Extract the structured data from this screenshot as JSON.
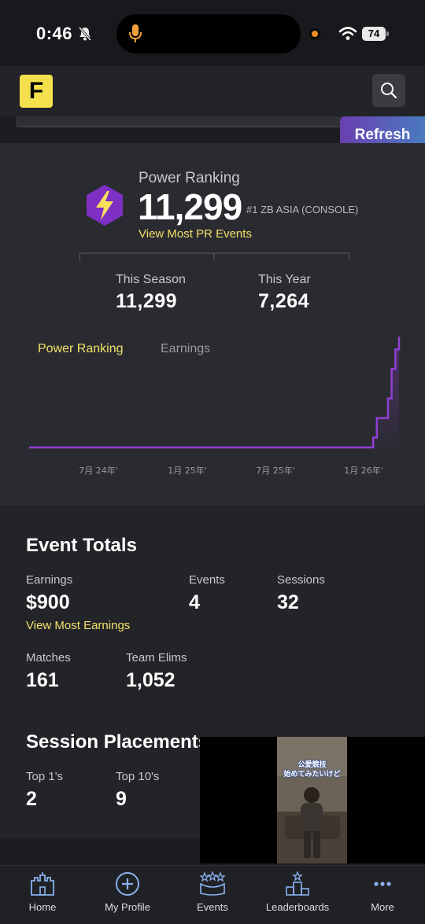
{
  "status_bar": {
    "time": "0:46",
    "battery": "74"
  },
  "header": {
    "logo_letter": "F",
    "refresh_label": "Refresh"
  },
  "power_ranking": {
    "label": "Power Ranking",
    "value": "11,299",
    "rank_text": "#1 ZB ASIA (CONSOLE)",
    "link": "View Most PR Events",
    "this_season_label": "This Season",
    "this_season_value": "11,299",
    "this_year_label": "This Year",
    "this_year_value": "7,264",
    "tabs": [
      "Power Ranking",
      "Earnings"
    ]
  },
  "chart_data": {
    "type": "line",
    "x_ticks": [
      "7月 24年'",
      "1月 25年'",
      "7月 25年'",
      "1月 26年'"
    ],
    "series": [
      {
        "values_shape": "flat near zero then stepping up sharply at the end",
        "x": [
          0,
          0.92,
          0.93,
          0.94,
          0.96,
          0.97,
          0.98,
          0.99,
          1.0
        ],
        "y": [
          0,
          0,
          1,
          3,
          3,
          5,
          8,
          10,
          11.3
        ]
      }
    ],
    "accent": "#8f3fd6"
  },
  "event_totals": {
    "title": "Event Totals",
    "earnings_label": "Earnings",
    "earnings_value": "$900",
    "earnings_link": "View Most Earnings",
    "events_label": "Events",
    "events_value": "4",
    "sessions_label": "Sessions",
    "sessions_value": "32",
    "matches_label": "Matches",
    "matches_value": "161",
    "elims_label": "Team Elims",
    "elims_value": "1,052"
  },
  "session_placements": {
    "title": "Session Placements",
    "top1_label": "Top 1's",
    "top1_value": "2",
    "top10_label": "Top 10's",
    "top10_value": "9"
  },
  "video_overlay": {
    "caption_line1": "公愛競技",
    "caption_line2": "始めてみたいけど"
  },
  "nav": {
    "home": "Home",
    "profile": "My Profile",
    "events": "Events",
    "leaderboards": "Leaderboards",
    "more": "More"
  }
}
